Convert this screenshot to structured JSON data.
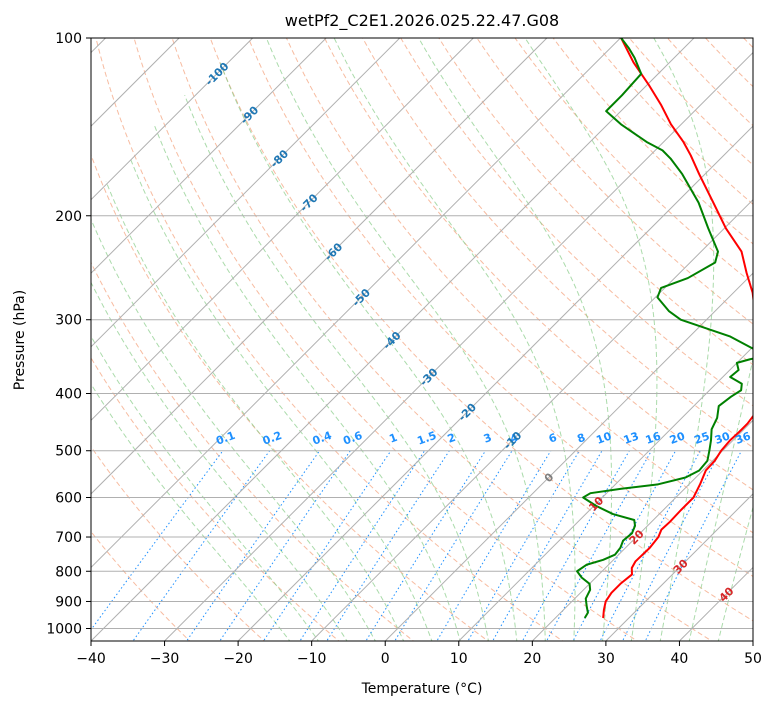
{
  "chart_data": {
    "type": "line",
    "chart_kind": "skew-T log-P diagram",
    "title": "wetPf2_C2E1.2026.025.22.47.G08",
    "xlabel": "Temperature (°C)",
    "ylabel": "Pressure (hPa)",
    "xlim": [
      -40,
      50
    ],
    "ylim": [
      1050,
      100
    ],
    "x_ticks": [
      -40,
      -30,
      -20,
      -10,
      0,
      10,
      20,
      30,
      40,
      50
    ],
    "x_tick_labels": [
      "−40",
      "−30",
      "−20",
      "−10",
      "0",
      "10",
      "20",
      "30",
      "40",
      "50"
    ],
    "y_ticks": [
      1000,
      900,
      800,
      700,
      600,
      500,
      400,
      300,
      200,
      100
    ],
    "y_tick_labels": [
      "1000",
      "900",
      "800",
      "700",
      "600",
      "500",
      "400",
      "300",
      "200",
      "100"
    ],
    "isotherm_labels": [
      {
        "label": "-100",
        "temp": -100,
        "p": 115
      },
      {
        "label": "-90",
        "temp": -90,
        "p": 135
      },
      {
        "label": "-80",
        "temp": -80,
        "p": 160
      },
      {
        "label": "-70",
        "temp": -70,
        "p": 190
      },
      {
        "label": "-60",
        "temp": -60,
        "p": 230
      },
      {
        "label": "-50",
        "temp": -50,
        "p": 275
      },
      {
        "label": "-40",
        "temp": -40,
        "p": 325
      },
      {
        "label": "-30",
        "temp": -30,
        "p": 375
      },
      {
        "label": "-20",
        "temp": -20,
        "p": 430
      },
      {
        "label": "-10",
        "temp": -10,
        "p": 480
      },
      {
        "label": "0",
        "temp": 0,
        "p": 555
      },
      {
        "label": "10",
        "temp": 10,
        "p": 615
      },
      {
        "label": "20",
        "temp": 20,
        "p": 700
      },
      {
        "label": "30",
        "temp": 30,
        "p": 785
      },
      {
        "label": "40",
        "temp": 40,
        "p": 875
      }
    ],
    "mixing_ratio_labels": [
      "0.1",
      "0.2",
      "0.4",
      "0.6",
      "1",
      "1.5",
      "2",
      "3",
      "4",
      "6",
      "8",
      "10",
      "13",
      "16",
      "20",
      "25",
      "30",
      "36"
    ],
    "mixing_ratio_label_pressure": 490,
    "series": [
      {
        "name": "Temperature",
        "color": "#ff0000",
        "points": [
          {
            "p": 960,
            "t": 26.5
          },
          {
            "p": 930,
            "t": 25.5
          },
          {
            "p": 900,
            "t": 24.6
          },
          {
            "p": 870,
            "t": 24.2
          },
          {
            "p": 840,
            "t": 24.2
          },
          {
            "p": 810,
            "t": 24.5
          },
          {
            "p": 790,
            "t": 23.6
          },
          {
            "p": 770,
            "t": 23.2
          },
          {
            "p": 730,
            "t": 23.3
          },
          {
            "p": 700,
            "t": 23.0
          },
          {
            "p": 680,
            "t": 22.4
          },
          {
            "p": 660,
            "t": 22.5
          },
          {
            "p": 630,
            "t": 22.4
          },
          {
            "p": 600,
            "t": 22.4
          },
          {
            "p": 570,
            "t": 21.5
          },
          {
            "p": 540,
            "t": 20.4
          },
          {
            "p": 520,
            "t": 20.3
          },
          {
            "p": 500,
            "t": 19.8
          },
          {
            "p": 480,
            "t": 19.6
          },
          {
            "p": 465,
            "t": 19.7
          },
          {
            "p": 450,
            "t": 19.7
          },
          {
            "p": 430,
            "t": 19.3
          },
          {
            "p": 410,
            "t": 18.0
          },
          {
            "p": 395,
            "t": 16.4
          },
          {
            "p": 380,
            "t": 15.0
          },
          {
            "p": 360,
            "t": 14.4
          },
          {
            "p": 345,
            "t": 13.0
          },
          {
            "p": 320,
            "t": 9.5
          },
          {
            "p": 300,
            "t": 6.7
          },
          {
            "p": 270,
            "t": 2.6
          },
          {
            "p": 250,
            "t": -0.9
          },
          {
            "p": 230,
            "t": -4.5
          },
          {
            "p": 210,
            "t": -9.8
          },
          {
            "p": 190,
            "t": -15.0
          },
          {
            "p": 170,
            "t": -20.8
          },
          {
            "p": 158,
            "t": -24.5
          },
          {
            "p": 150,
            "t": -27.3
          },
          {
            "p": 140,
            "t": -31.4
          },
          {
            "p": 130,
            "t": -35.3
          },
          {
            "p": 120,
            "t": -39.8
          },
          {
            "p": 110,
            "t": -44.9
          },
          {
            "p": 100,
            "t": -49.9
          }
        ]
      },
      {
        "name": "Dewpoint",
        "color": "#008000",
        "points": [
          {
            "p": 960,
            "t": 24.0
          },
          {
            "p": 940,
            "t": 23.7
          },
          {
            "p": 920,
            "t": 22.8
          },
          {
            "p": 890,
            "t": 21.5
          },
          {
            "p": 860,
            "t": 20.9
          },
          {
            "p": 840,
            "t": 20.0
          },
          {
            "p": 820,
            "t": 18.1
          },
          {
            "p": 800,
            "t": 16.6
          },
          {
            "p": 780,
            "t": 17.0
          },
          {
            "p": 765,
            "t": 18.6
          },
          {
            "p": 750,
            "t": 19.5
          },
          {
            "p": 730,
            "t": 19.3
          },
          {
            "p": 710,
            "t": 18.7
          },
          {
            "p": 690,
            "t": 18.9
          },
          {
            "p": 670,
            "t": 18.3
          },
          {
            "p": 655,
            "t": 17.4
          },
          {
            "p": 640,
            "t": 13.7
          },
          {
            "p": 620,
            "t": 10.3
          },
          {
            "p": 600,
            "t": 7.4
          },
          {
            "p": 590,
            "t": 7.8
          },
          {
            "p": 580,
            "t": 11.4
          },
          {
            "p": 570,
            "t": 15.8
          },
          {
            "p": 555,
            "t": 18.6
          },
          {
            "p": 540,
            "t": 19.5
          },
          {
            "p": 520,
            "t": 19.3
          },
          {
            "p": 500,
            "t": 18.2
          },
          {
            "p": 480,
            "t": 17.0
          },
          {
            "p": 460,
            "t": 15.6
          },
          {
            "p": 440,
            "t": 14.8
          },
          {
            "p": 420,
            "t": 13.4
          },
          {
            "p": 405,
            "t": 13.8
          },
          {
            "p": 395,
            "t": 14.3
          },
          {
            "p": 385,
            "t": 13.5
          },
          {
            "p": 375,
            "t": 11.0
          },
          {
            "p": 365,
            "t": 11.2
          },
          {
            "p": 355,
            "t": 10.0
          },
          {
            "p": 350,
            "t": 11.3
          },
          {
            "p": 345,
            "t": 13.0
          },
          {
            "p": 335,
            "t": 10.0
          },
          {
            "p": 320,
            "t": 5.4
          },
          {
            "p": 300,
            "t": -3.5
          },
          {
            "p": 290,
            "t": -6.3
          },
          {
            "p": 275,
            "t": -9.7
          },
          {
            "p": 265,
            "t": -10.5
          },
          {
            "p": 255,
            "t": -8.2
          },
          {
            "p": 240,
            "t": -6.6
          },
          {
            "p": 230,
            "t": -7.7
          },
          {
            "p": 210,
            "t": -12.2
          },
          {
            "p": 190,
            "t": -17.0
          },
          {
            "p": 170,
            "t": -23.1
          },
          {
            "p": 160,
            "t": -26.8
          },
          {
            "p": 155,
            "t": -29.0
          },
          {
            "p": 150,
            "t": -32.3
          },
          {
            "p": 140,
            "t": -38.2
          },
          {
            "p": 133,
            "t": -42.0
          },
          {
            "p": 125,
            "t": -42.0
          },
          {
            "p": 115,
            "t": -42.3
          },
          {
            "p": 108,
            "t": -45.4
          },
          {
            "p": 104,
            "t": -47.5
          },
          {
            "p": 100,
            "t": -49.9
          }
        ]
      }
    ],
    "reference_lines": {
      "isobars": [
        100,
        200,
        300,
        400,
        500,
        600,
        700,
        800,
        900,
        1000
      ],
      "isotherm_color": "#b0b0b0",
      "dry_adiabat_color": "#f4a582",
      "moist_adiabat_color": "#88cc88",
      "mixing_ratio_color": "#1e90ff"
    }
  }
}
